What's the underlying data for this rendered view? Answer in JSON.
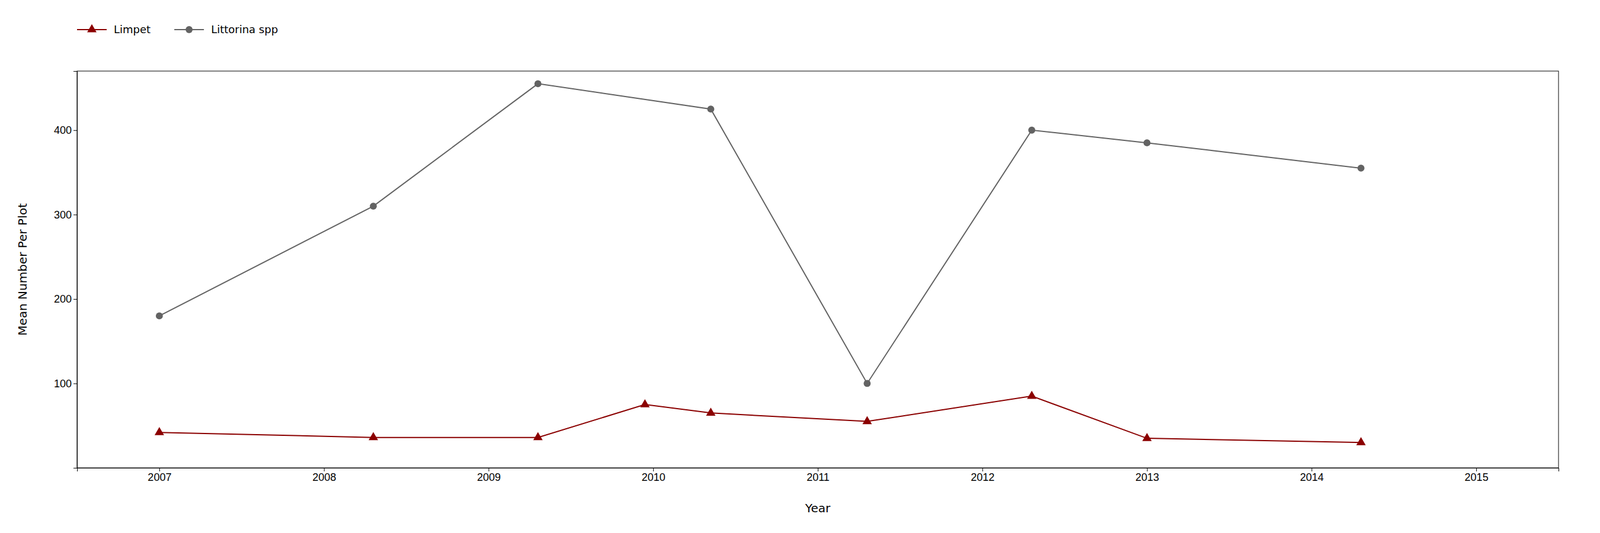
{
  "chart_data": {
    "type": "line",
    "xlabel": "Year",
    "ylabel": "Mean Number Per Plot",
    "xlim": [
      2006.5,
      2015.5
    ],
    "ylim": [
      0,
      470
    ],
    "xticks": [
      2007,
      2008,
      2009,
      2010,
      2011,
      2012,
      2013,
      2014,
      2015
    ],
    "yticks": [
      100,
      200,
      300,
      400
    ],
    "grid": false,
    "legend": "upper left",
    "series": [
      {
        "name": "Limpet",
        "color": "#8B0000",
        "marker": "triangle",
        "x": [
          2007.0,
          2008.3,
          2009.3,
          2009.95,
          2010.35,
          2011.3,
          2012.3,
          2013.0,
          2014.3
        ],
        "values": [
          42,
          36,
          36,
          75,
          65,
          55,
          85,
          35,
          30
        ]
      },
      {
        "name": "Littorina spp",
        "color": "#636363",
        "marker": "circle",
        "x": [
          2007.0,
          2008.3,
          2009.3,
          2010.35,
          2011.3,
          2012.3,
          2013.0,
          2014.3
        ],
        "values": [
          180,
          310,
          455,
          425,
          100,
          400,
          385,
          355
        ]
      }
    ]
  }
}
